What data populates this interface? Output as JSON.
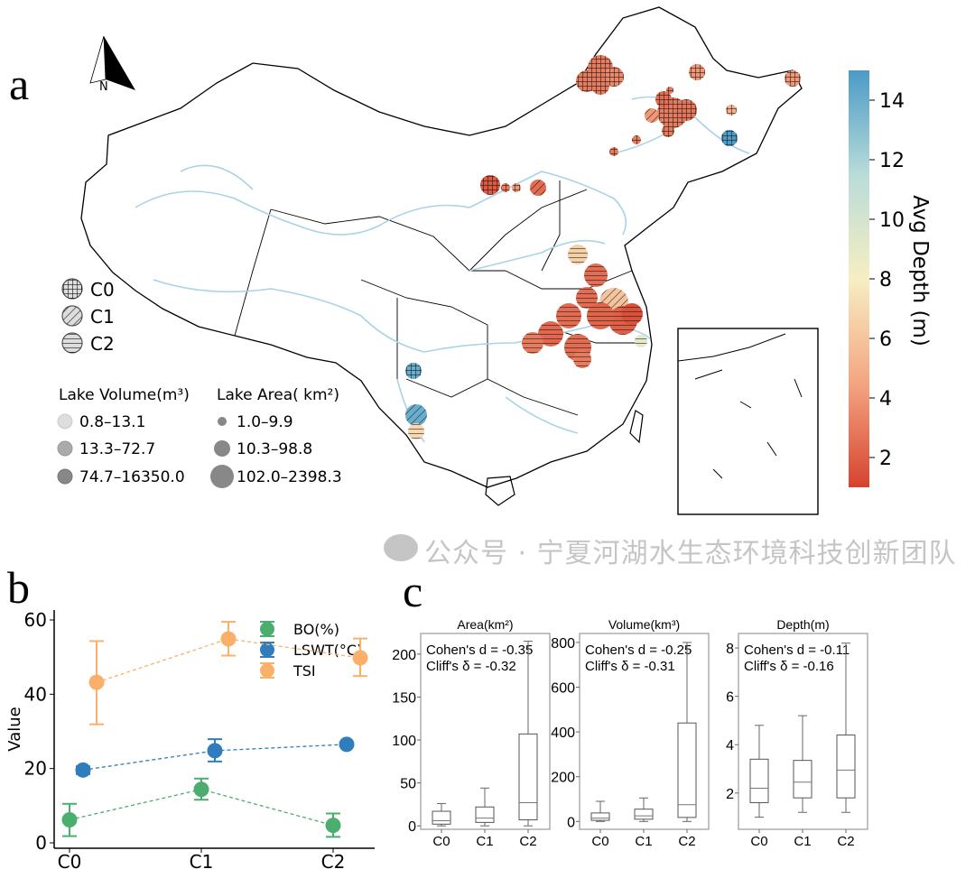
{
  "panel_labels": {
    "a": "a",
    "b": "b",
    "c": "c"
  },
  "map": {
    "north_label": "N",
    "cluster_legend": [
      {
        "label": "C0",
        "pattern": "grid"
      },
      {
        "label": "C1",
        "pattern": "diagonal"
      },
      {
        "label": "C2",
        "pattern": "horizontal"
      }
    ],
    "volume_legend": {
      "title": "Lake Volume(m³)",
      "items": [
        "0.8–13.1",
        "13.3–72.7",
        "74.7–16350.0"
      ]
    },
    "area_legend": {
      "title": "Lake Area( km²)",
      "items": [
        "1.0–9.9",
        "10.3–98.8",
        "102.0–2398.3"
      ]
    },
    "colorbar": {
      "label": "Avg Depth (m)",
      "ticks": [
        "2",
        "4",
        "6",
        "8",
        "10",
        "12",
        "14"
      ],
      "range": [
        1,
        15
      ],
      "colors": [
        "#d6432f",
        "#f4a582",
        "#f7eec3",
        "#b9dcd8",
        "#4b9ac7"
      ]
    },
    "river_color": "#a9d3e6"
  },
  "chart_data": [
    {
      "type": "line",
      "panel": "b",
      "ylabel": "Value",
      "categories": [
        "C0",
        "C1",
        "C2"
      ],
      "ylim": [
        0,
        62
      ],
      "yticks": [
        "0",
        "20",
        "40",
        "60"
      ],
      "legend_position": "top-right",
      "series": [
        {
          "name": "BO(%)",
          "color": "#4bae6e",
          "values": [
            6.2,
            14.4,
            4.7
          ],
          "err_low": [
            1.8,
            11.6,
            1.6
          ],
          "err_high": [
            10.5,
            17.3,
            7.9
          ]
        },
        {
          "name": "LSWT(°C)",
          "color": "#2f7dbc",
          "values": [
            19.6,
            24.8,
            26.5
          ],
          "err_low": [
            18.5,
            21.9,
            26.0
          ],
          "err_high": [
            20.6,
            27.9,
            27.0
          ]
        },
        {
          "name": "TSI",
          "color": "#fbb06a",
          "values": [
            43.2,
            54.9,
            49.8
          ],
          "err_low": [
            31.9,
            50.4,
            44.9
          ],
          "err_high": [
            54.3,
            59.5,
            55.0
          ]
        }
      ]
    },
    {
      "type": "box",
      "panel": "c",
      "title": "Area(km²)",
      "categories": [
        "C0",
        "C1",
        "C2"
      ],
      "ylim": [
        -4,
        224
      ],
      "yticks": [
        "0",
        "50",
        "100",
        "150",
        "200"
      ],
      "annotation": [
        "Cohen's d = -0.35",
        "Cliff's δ = -0.32"
      ],
      "boxes": [
        [
          0,
          2,
          6,
          17,
          26
        ],
        [
          0,
          4,
          9,
          22,
          44
        ],
        [
          0,
          7,
          27,
          107,
          215
        ]
      ]
    },
    {
      "type": "box",
      "panel": "c",
      "title": "Volume(km³)",
      "categories": [
        "C0",
        "C1",
        "C2"
      ],
      "ylim": [
        -35,
        840
      ],
      "yticks": [
        "0",
        "200",
        "400",
        "600",
        "800"
      ],
      "annotation": [
        "Cohen's d = -0.25",
        "Cliff's δ = -0.31"
      ],
      "boxes": [
        [
          0,
          5,
          15,
          38,
          90
        ],
        [
          0,
          10,
          25,
          55,
          105
        ],
        [
          0,
          18,
          75,
          440,
          800
        ]
      ]
    },
    {
      "type": "box",
      "panel": "c",
      "title": "Depth(m)",
      "categories": [
        "C0",
        "C1",
        "C2"
      ],
      "ylim": [
        0.5,
        8.6
      ],
      "yticks": [
        "2",
        "4",
        "6",
        "8"
      ],
      "annotation": [
        "Cohen's d = -0.11",
        "Cliff's δ = -0.16"
      ],
      "boxes": [
        [
          1.0,
          1.6,
          2.2,
          3.4,
          4.8
        ],
        [
          1.2,
          1.8,
          2.45,
          3.35,
          5.2
        ],
        [
          1.2,
          1.8,
          2.95,
          4.4,
          8.2
        ]
      ]
    }
  ],
  "watermark": "公众号 · 宁夏河湖水生态环境科技创新团队"
}
